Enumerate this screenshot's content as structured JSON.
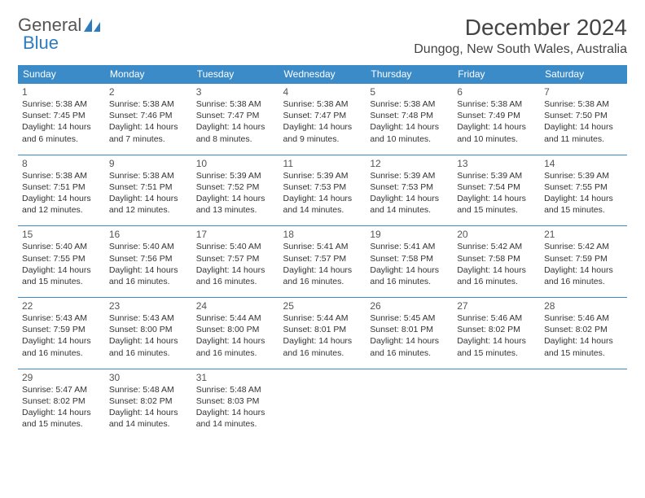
{
  "brand": {
    "part1": "General",
    "part2": "Blue"
  },
  "title": "December 2024",
  "location": "Dungog, New South Wales, Australia",
  "colors": {
    "header_bg": "#3b8bc9",
    "header_text": "#ffffff",
    "cell_border": "#3b8bc9",
    "body_text": "#333333",
    "title_text": "#444444",
    "brand_gray": "#555555",
    "brand_blue": "#2e7cc0",
    "background": "#ffffff"
  },
  "day_headers": [
    "Sunday",
    "Monday",
    "Tuesday",
    "Wednesday",
    "Thursday",
    "Friday",
    "Saturday"
  ],
  "weeks": [
    [
      {
        "n": "1",
        "sr": "Sunrise: 5:38 AM",
        "ss": "Sunset: 7:45 PM",
        "d1": "Daylight: 14 hours",
        "d2": "and 6 minutes."
      },
      {
        "n": "2",
        "sr": "Sunrise: 5:38 AM",
        "ss": "Sunset: 7:46 PM",
        "d1": "Daylight: 14 hours",
        "d2": "and 7 minutes."
      },
      {
        "n": "3",
        "sr": "Sunrise: 5:38 AM",
        "ss": "Sunset: 7:47 PM",
        "d1": "Daylight: 14 hours",
        "d2": "and 8 minutes."
      },
      {
        "n": "4",
        "sr": "Sunrise: 5:38 AM",
        "ss": "Sunset: 7:47 PM",
        "d1": "Daylight: 14 hours",
        "d2": "and 9 minutes."
      },
      {
        "n": "5",
        "sr": "Sunrise: 5:38 AM",
        "ss": "Sunset: 7:48 PM",
        "d1": "Daylight: 14 hours",
        "d2": "and 10 minutes."
      },
      {
        "n": "6",
        "sr": "Sunrise: 5:38 AM",
        "ss": "Sunset: 7:49 PM",
        "d1": "Daylight: 14 hours",
        "d2": "and 10 minutes."
      },
      {
        "n": "7",
        "sr": "Sunrise: 5:38 AM",
        "ss": "Sunset: 7:50 PM",
        "d1": "Daylight: 14 hours",
        "d2": "and 11 minutes."
      }
    ],
    [
      {
        "n": "8",
        "sr": "Sunrise: 5:38 AM",
        "ss": "Sunset: 7:51 PM",
        "d1": "Daylight: 14 hours",
        "d2": "and 12 minutes."
      },
      {
        "n": "9",
        "sr": "Sunrise: 5:38 AM",
        "ss": "Sunset: 7:51 PM",
        "d1": "Daylight: 14 hours",
        "d2": "and 12 minutes."
      },
      {
        "n": "10",
        "sr": "Sunrise: 5:39 AM",
        "ss": "Sunset: 7:52 PM",
        "d1": "Daylight: 14 hours",
        "d2": "and 13 minutes."
      },
      {
        "n": "11",
        "sr": "Sunrise: 5:39 AM",
        "ss": "Sunset: 7:53 PM",
        "d1": "Daylight: 14 hours",
        "d2": "and 14 minutes."
      },
      {
        "n": "12",
        "sr": "Sunrise: 5:39 AM",
        "ss": "Sunset: 7:53 PM",
        "d1": "Daylight: 14 hours",
        "d2": "and 14 minutes."
      },
      {
        "n": "13",
        "sr": "Sunrise: 5:39 AM",
        "ss": "Sunset: 7:54 PM",
        "d1": "Daylight: 14 hours",
        "d2": "and 15 minutes."
      },
      {
        "n": "14",
        "sr": "Sunrise: 5:39 AM",
        "ss": "Sunset: 7:55 PM",
        "d1": "Daylight: 14 hours",
        "d2": "and 15 minutes."
      }
    ],
    [
      {
        "n": "15",
        "sr": "Sunrise: 5:40 AM",
        "ss": "Sunset: 7:55 PM",
        "d1": "Daylight: 14 hours",
        "d2": "and 15 minutes."
      },
      {
        "n": "16",
        "sr": "Sunrise: 5:40 AM",
        "ss": "Sunset: 7:56 PM",
        "d1": "Daylight: 14 hours",
        "d2": "and 16 minutes."
      },
      {
        "n": "17",
        "sr": "Sunrise: 5:40 AM",
        "ss": "Sunset: 7:57 PM",
        "d1": "Daylight: 14 hours",
        "d2": "and 16 minutes."
      },
      {
        "n": "18",
        "sr": "Sunrise: 5:41 AM",
        "ss": "Sunset: 7:57 PM",
        "d1": "Daylight: 14 hours",
        "d2": "and 16 minutes."
      },
      {
        "n": "19",
        "sr": "Sunrise: 5:41 AM",
        "ss": "Sunset: 7:58 PM",
        "d1": "Daylight: 14 hours",
        "d2": "and 16 minutes."
      },
      {
        "n": "20",
        "sr": "Sunrise: 5:42 AM",
        "ss": "Sunset: 7:58 PM",
        "d1": "Daylight: 14 hours",
        "d2": "and 16 minutes."
      },
      {
        "n": "21",
        "sr": "Sunrise: 5:42 AM",
        "ss": "Sunset: 7:59 PM",
        "d1": "Daylight: 14 hours",
        "d2": "and 16 minutes."
      }
    ],
    [
      {
        "n": "22",
        "sr": "Sunrise: 5:43 AM",
        "ss": "Sunset: 7:59 PM",
        "d1": "Daylight: 14 hours",
        "d2": "and 16 minutes."
      },
      {
        "n": "23",
        "sr": "Sunrise: 5:43 AM",
        "ss": "Sunset: 8:00 PM",
        "d1": "Daylight: 14 hours",
        "d2": "and 16 minutes."
      },
      {
        "n": "24",
        "sr": "Sunrise: 5:44 AM",
        "ss": "Sunset: 8:00 PM",
        "d1": "Daylight: 14 hours",
        "d2": "and 16 minutes."
      },
      {
        "n": "25",
        "sr": "Sunrise: 5:44 AM",
        "ss": "Sunset: 8:01 PM",
        "d1": "Daylight: 14 hours",
        "d2": "and 16 minutes."
      },
      {
        "n": "26",
        "sr": "Sunrise: 5:45 AM",
        "ss": "Sunset: 8:01 PM",
        "d1": "Daylight: 14 hours",
        "d2": "and 16 minutes."
      },
      {
        "n": "27",
        "sr": "Sunrise: 5:46 AM",
        "ss": "Sunset: 8:02 PM",
        "d1": "Daylight: 14 hours",
        "d2": "and 15 minutes."
      },
      {
        "n": "28",
        "sr": "Sunrise: 5:46 AM",
        "ss": "Sunset: 8:02 PM",
        "d1": "Daylight: 14 hours",
        "d2": "and 15 minutes."
      }
    ],
    [
      {
        "n": "29",
        "sr": "Sunrise: 5:47 AM",
        "ss": "Sunset: 8:02 PM",
        "d1": "Daylight: 14 hours",
        "d2": "and 15 minutes."
      },
      {
        "n": "30",
        "sr": "Sunrise: 5:48 AM",
        "ss": "Sunset: 8:02 PM",
        "d1": "Daylight: 14 hours",
        "d2": "and 14 minutes."
      },
      {
        "n": "31",
        "sr": "Sunrise: 5:48 AM",
        "ss": "Sunset: 8:03 PM",
        "d1": "Daylight: 14 hours",
        "d2": "and 14 minutes."
      },
      null,
      null,
      null,
      null
    ]
  ]
}
